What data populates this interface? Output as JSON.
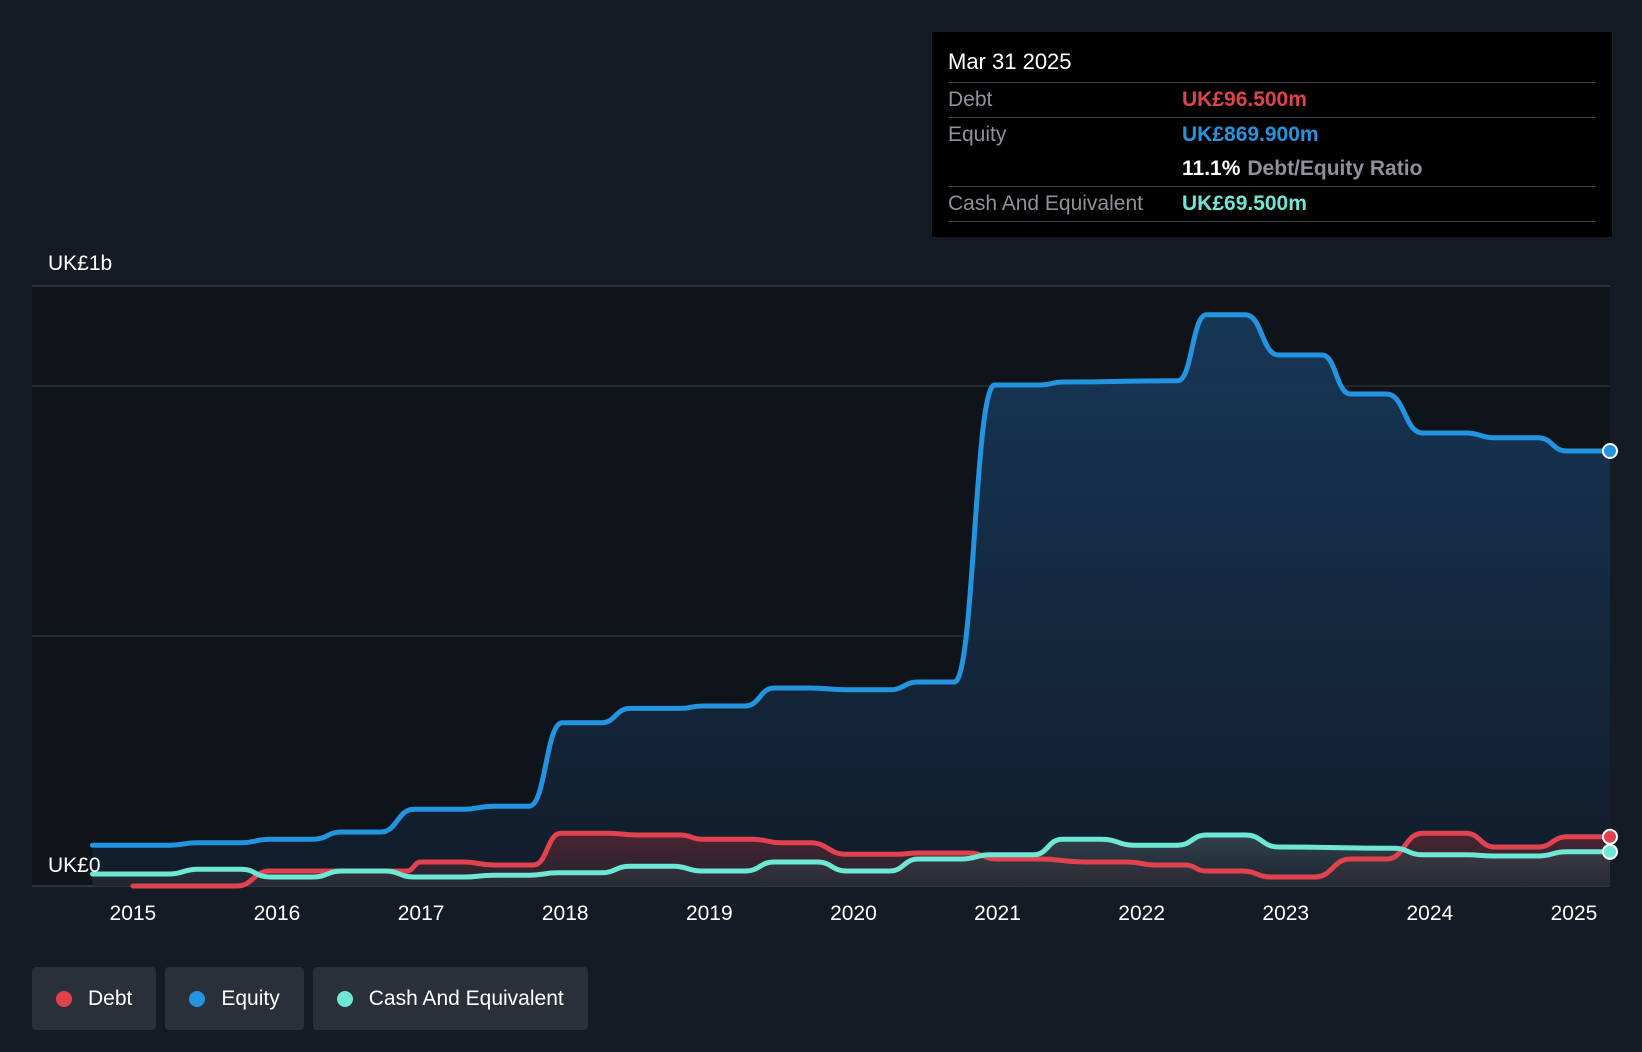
{
  "tooltip": {
    "date": "Mar 31 2025",
    "rows": {
      "debt": {
        "label": "Debt",
        "value": "UK£96.500m"
      },
      "equity": {
        "label": "Equity",
        "value": "UK£869.900m"
      },
      "ratio": {
        "value": "11.1%",
        "label": "Debt/Equity Ratio"
      },
      "cash": {
        "label": "Cash And Equivalent",
        "value": "UK£69.500m"
      }
    }
  },
  "legend": {
    "debt": "Debt",
    "equity": "Equity",
    "cash": "Cash And Equivalent"
  },
  "colors": {
    "background": "#151b24",
    "plot_background": "#0f141b",
    "debt": "#e0434f",
    "equity": "#2394df",
    "cash": "#6ee7d5",
    "grid": "#353b44",
    "text": "#ffffff"
  },
  "chart_data": {
    "type": "line",
    "title": "",
    "xlabel": "",
    "ylabel": "",
    "x_unit": "year",
    "xlim": [
      2014.3,
      2025.25
    ],
    "ylim": [
      0,
      1000
    ],
    "y_unit": "UK£m",
    "y_tick_labels": [
      {
        "value": 0,
        "label": "UK£0"
      },
      {
        "value": 1000,
        "label": "UK£1b"
      }
    ],
    "gridlines": [
      0,
      416.67,
      833.33,
      1000
    ],
    "x_tick_labels": [
      "2015",
      "2016",
      "2017",
      "2018",
      "2019",
      "2020",
      "2021",
      "2022",
      "2023",
      "2024",
      "2025"
    ],
    "x_ticks": [
      2015,
      2016,
      2017,
      2018,
      2019,
      2020,
      2021,
      2022,
      2023,
      2024,
      2025
    ],
    "grid": true,
    "legend_position": "bottom-left",
    "series": [
      {
        "name": "Debt",
        "key": "debt",
        "points": [
          [
            2015.0,
            0
          ],
          [
            2015.72,
            0
          ],
          [
            2015.95,
            25
          ],
          [
            2016.5,
            25
          ],
          [
            2016.9,
            25
          ],
          [
            2017.0,
            40
          ],
          [
            2017.3,
            40
          ],
          [
            2017.5,
            35
          ],
          [
            2017.78,
            35
          ],
          [
            2017.97,
            88
          ],
          [
            2018.3,
            88
          ],
          [
            2018.5,
            85
          ],
          [
            2018.8,
            85
          ],
          [
            2018.95,
            78
          ],
          [
            2019.3,
            78
          ],
          [
            2019.5,
            72
          ],
          [
            2019.7,
            72
          ],
          [
            2019.95,
            53
          ],
          [
            2020.3,
            53
          ],
          [
            2020.45,
            55
          ],
          [
            2020.8,
            55
          ],
          [
            2021.0,
            45
          ],
          [
            2021.3,
            45
          ],
          [
            2021.6,
            40
          ],
          [
            2021.9,
            40
          ],
          [
            2022.1,
            35
          ],
          [
            2022.3,
            35
          ],
          [
            2022.45,
            25
          ],
          [
            2022.7,
            25
          ],
          [
            2022.9,
            15
          ],
          [
            2023.2,
            15
          ],
          [
            2023.45,
            45
          ],
          [
            2023.7,
            45
          ],
          [
            2023.95,
            88
          ],
          [
            2024.25,
            88
          ],
          [
            2024.45,
            65
          ],
          [
            2024.75,
            65
          ],
          [
            2024.95,
            82
          ],
          [
            2025.25,
            82
          ]
        ]
      },
      {
        "name": "Equity",
        "key": "equity",
        "points": [
          [
            2014.72,
            68
          ],
          [
            2015.25,
            68
          ],
          [
            2015.45,
            72
          ],
          [
            2015.75,
            72
          ],
          [
            2015.95,
            78
          ],
          [
            2016.25,
            78
          ],
          [
            2016.45,
            90
          ],
          [
            2016.72,
            90
          ],
          [
            2016.95,
            128
          ],
          [
            2017.3,
            128
          ],
          [
            2017.5,
            133
          ],
          [
            2017.75,
            133
          ],
          [
            2017.98,
            272
          ],
          [
            2018.25,
            272
          ],
          [
            2018.45,
            296
          ],
          [
            2018.8,
            296
          ],
          [
            2018.95,
            300
          ],
          [
            2019.25,
            300
          ],
          [
            2019.45,
            330
          ],
          [
            2019.7,
            330
          ],
          [
            2019.95,
            327
          ],
          [
            2020.25,
            327
          ],
          [
            2020.45,
            340
          ],
          [
            2020.7,
            340
          ],
          [
            2020.98,
            835
          ],
          [
            2021.3,
            835
          ],
          [
            2021.45,
            840
          ],
          [
            2022.25,
            842
          ],
          [
            2022.45,
            952
          ],
          [
            2022.72,
            952
          ],
          [
            2022.95,
            885
          ],
          [
            2023.25,
            885
          ],
          [
            2023.45,
            820
          ],
          [
            2023.7,
            820
          ],
          [
            2023.95,
            755
          ],
          [
            2024.25,
            755
          ],
          [
            2024.45,
            747
          ],
          [
            2024.75,
            747
          ],
          [
            2024.95,
            725
          ],
          [
            2025.25,
            725
          ]
        ]
      },
      {
        "name": "Cash And Equivalent",
        "key": "cash",
        "points": [
          [
            2014.72,
            20
          ],
          [
            2015.25,
            20
          ],
          [
            2015.45,
            28
          ],
          [
            2015.75,
            28
          ],
          [
            2015.95,
            15
          ],
          [
            2016.25,
            15
          ],
          [
            2016.45,
            25
          ],
          [
            2016.75,
            25
          ],
          [
            2016.95,
            15
          ],
          [
            2017.3,
            15
          ],
          [
            2017.5,
            18
          ],
          [
            2017.75,
            18
          ],
          [
            2017.95,
            22
          ],
          [
            2018.25,
            22
          ],
          [
            2018.45,
            33
          ],
          [
            2018.75,
            33
          ],
          [
            2018.95,
            25
          ],
          [
            2019.25,
            25
          ],
          [
            2019.45,
            40
          ],
          [
            2019.75,
            40
          ],
          [
            2019.95,
            25
          ],
          [
            2020.25,
            25
          ],
          [
            2020.45,
            45
          ],
          [
            2020.75,
            45
          ],
          [
            2020.95,
            52
          ],
          [
            2021.25,
            52
          ],
          [
            2021.45,
            78
          ],
          [
            2021.72,
            78
          ],
          [
            2021.95,
            68
          ],
          [
            2022.25,
            68
          ],
          [
            2022.45,
            85
          ],
          [
            2022.72,
            85
          ],
          [
            2022.95,
            65
          ],
          [
            2023.75,
            63
          ],
          [
            2023.95,
            52
          ],
          [
            2024.25,
            52
          ],
          [
            2024.45,
            50
          ],
          [
            2024.75,
            50
          ],
          [
            2024.95,
            57
          ],
          [
            2025.25,
            57
          ]
        ]
      }
    ]
  }
}
